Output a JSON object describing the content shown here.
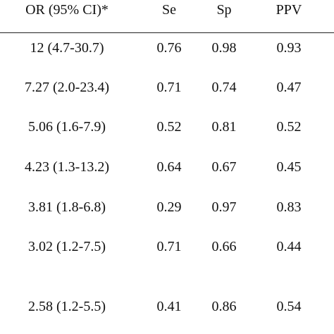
{
  "table": {
    "header": [
      "OR (95% CI)*",
      "Se",
      "Sp",
      "PPV"
    ],
    "rows": [
      [
        "12 (4.7-30.7)",
        "0.76",
        "0.98",
        "0.93"
      ],
      [
        "7.27 (2.0-23.4)",
        "0.71",
        "0.74",
        "0.47"
      ],
      [
        "5.06 (1.6-7.9)",
        "0.52",
        "0.81",
        "0.52"
      ],
      [
        "4.23 (1.3-13.2)",
        "0.64",
        "0.67",
        "0.45"
      ],
      [
        "3.81 (1.8-6.8)",
        "0.29",
        "0.97",
        "0.83"
      ],
      [
        "3.02 (1.2-7.5)",
        "0.71",
        "0.66",
        "0.44"
      ],
      [
        "2.58 (1.2-5.5)",
        "0.41",
        "0.86",
        "0.54"
      ]
    ]
  }
}
